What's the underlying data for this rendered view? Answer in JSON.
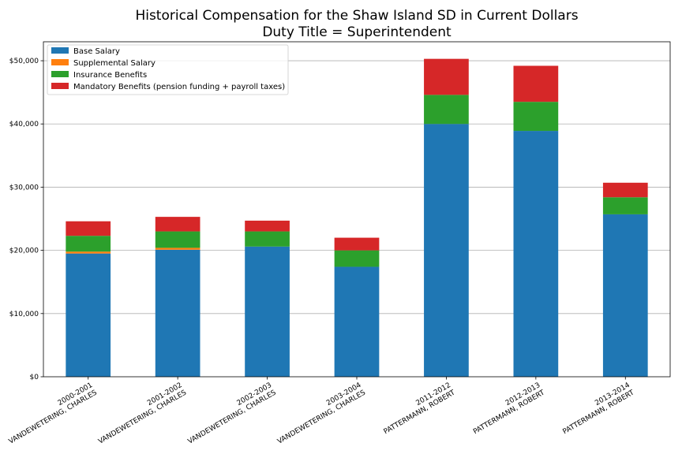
{
  "chart_data": {
    "type": "bar",
    "stacked": true,
    "title": [
      "Historical Compensation for the Shaw Island SD in Current Dollars",
      "Duty Title = Superintendent"
    ],
    "xlabel": "",
    "ylabel": "",
    "ylim": [
      0,
      53000
    ],
    "yticks": [
      0,
      10000,
      20000,
      30000,
      40000,
      50000
    ],
    "ytick_labels": [
      "$0",
      "$10,000",
      "$20,000",
      "$30,000",
      "$40,000",
      "$50,000"
    ],
    "grid": "horizontal",
    "legend_position": "top-left",
    "categories": [
      [
        "2000-2001",
        "VANDEWETERING, CHARLES"
      ],
      [
        "2001-2002",
        "VANDEWETERING, CHARLES"
      ],
      [
        "2002-2003",
        "VANDEWETERING, CHARLES"
      ],
      [
        "2003-2004",
        "VANDEWETERING, CHARLES"
      ],
      [
        "2011-2012",
        "PATTERMANN, ROBERT"
      ],
      [
        "2012-2013",
        "PATTERMANN, ROBERT"
      ],
      [
        "2013-2014",
        "PATTERMANN, ROBERT"
      ]
    ],
    "series": [
      {
        "name": "Base Salary",
        "color": "#1f77b4",
        "values": [
          19500,
          20100,
          20600,
          17400,
          40000,
          38900,
          25700
        ]
      },
      {
        "name": "Supplemental Salary",
        "color": "#ff7f0e",
        "values": [
          300,
          300,
          0,
          0,
          0,
          0,
          0
        ]
      },
      {
        "name": "Insurance Benefits",
        "color": "#2ca02c",
        "values": [
          2500,
          2600,
          2400,
          2600,
          4600,
          4600,
          2700
        ]
      },
      {
        "name": "Mandatory Benefits (pension funding + payroll taxes)",
        "color": "#d62728",
        "values": [
          2300,
          2300,
          1700,
          2000,
          5700,
          5700,
          2300
        ]
      }
    ]
  }
}
